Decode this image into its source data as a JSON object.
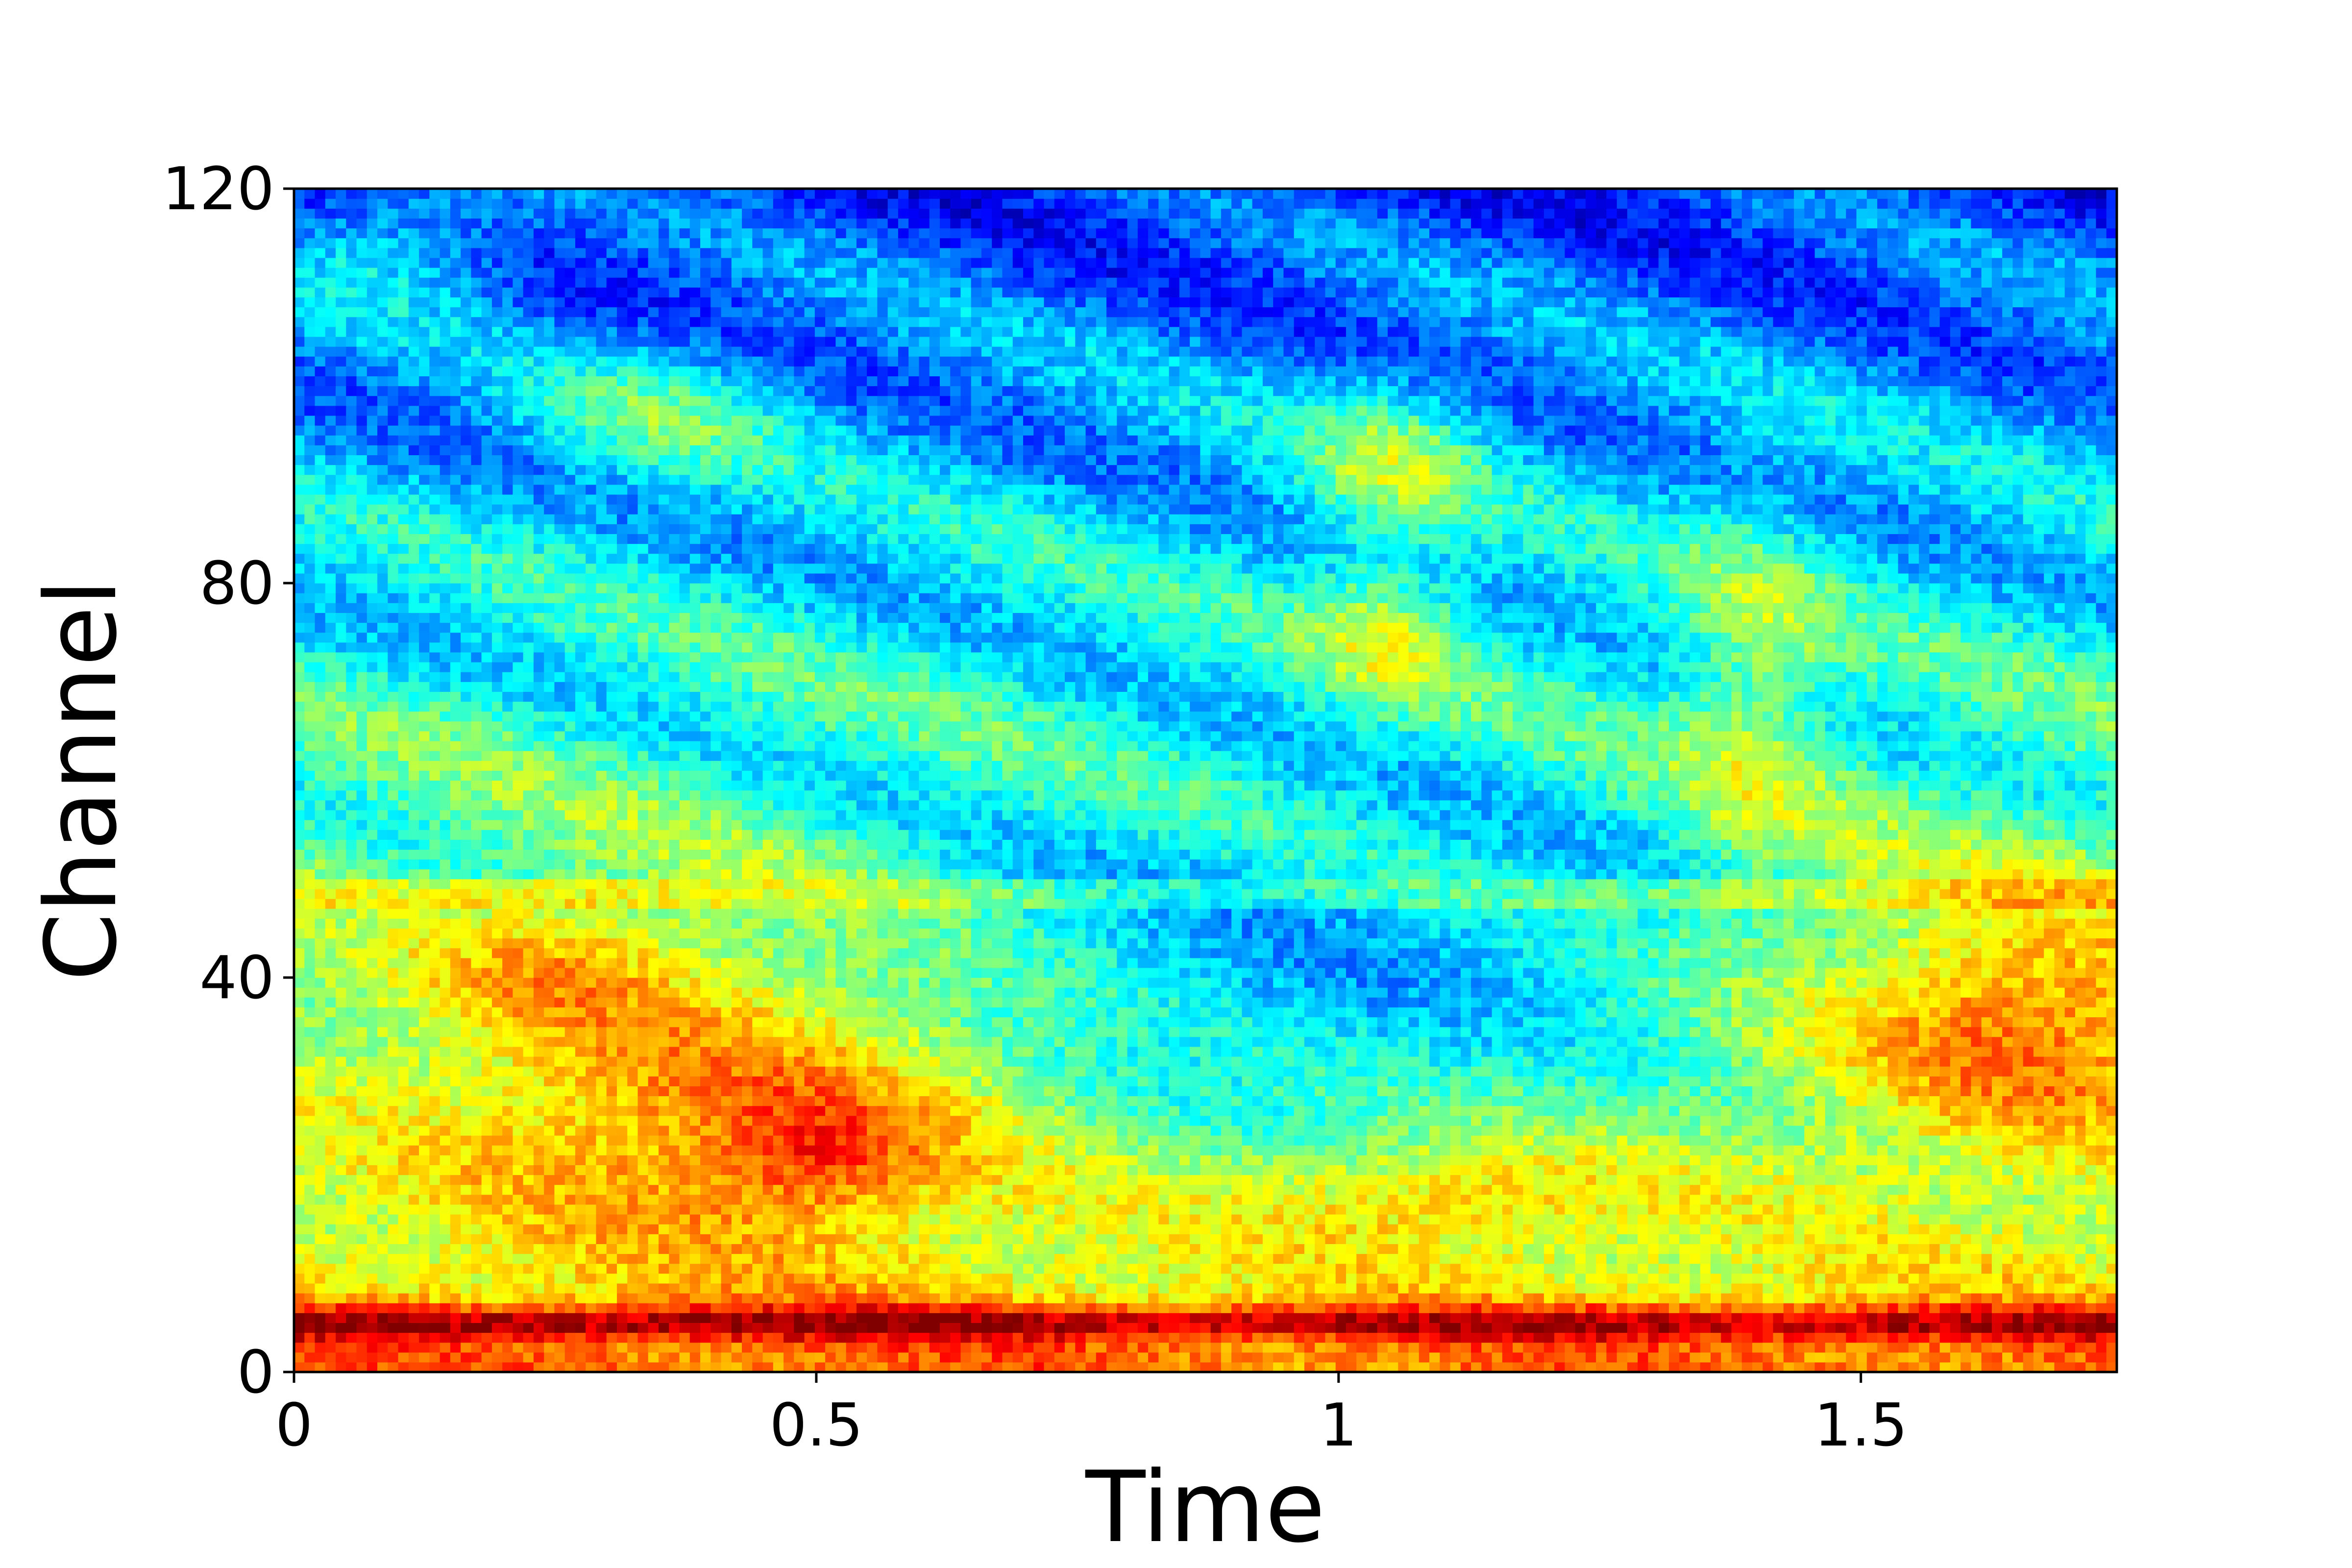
{
  "chart_data": {
    "type": "heatmap",
    "title": "",
    "xlabel": "Time",
    "ylabel": "Channel",
    "xlim": [
      0,
      1.745
    ],
    "ylim": [
      0,
      120
    ],
    "x_ticks": [
      {
        "value": 0,
        "label": "0"
      },
      {
        "value": 0.5,
        "label": "0.5"
      },
      {
        "value": 1,
        "label": "1"
      },
      {
        "value": 1.5,
        "label": "1.5"
      }
    ],
    "y_ticks": [
      {
        "value": 0,
        "label": "0"
      },
      {
        "value": 40,
        "label": "40"
      },
      {
        "value": 80,
        "label": "80"
      },
      {
        "value": 120,
        "label": "120"
      }
    ],
    "grid": false,
    "colormap": "jet",
    "n_time_bins": 175,
    "n_channels": 120,
    "energy_profile": {
      "description_note": "",
      "bands": [
        {
          "channel_min": 0,
          "channel_max": 10,
          "level": 0.85
        },
        {
          "channel_min": 10,
          "channel_max": 48,
          "level": 0.62
        },
        {
          "channel_min": 48,
          "channel_max": 50,
          "level": 0.55
        },
        {
          "channel_min": 50,
          "channel_max": 80,
          "level": 0.3
        },
        {
          "channel_min": 80,
          "channel_max": 120,
          "level": 0.2
        }
      ]
    }
  }
}
